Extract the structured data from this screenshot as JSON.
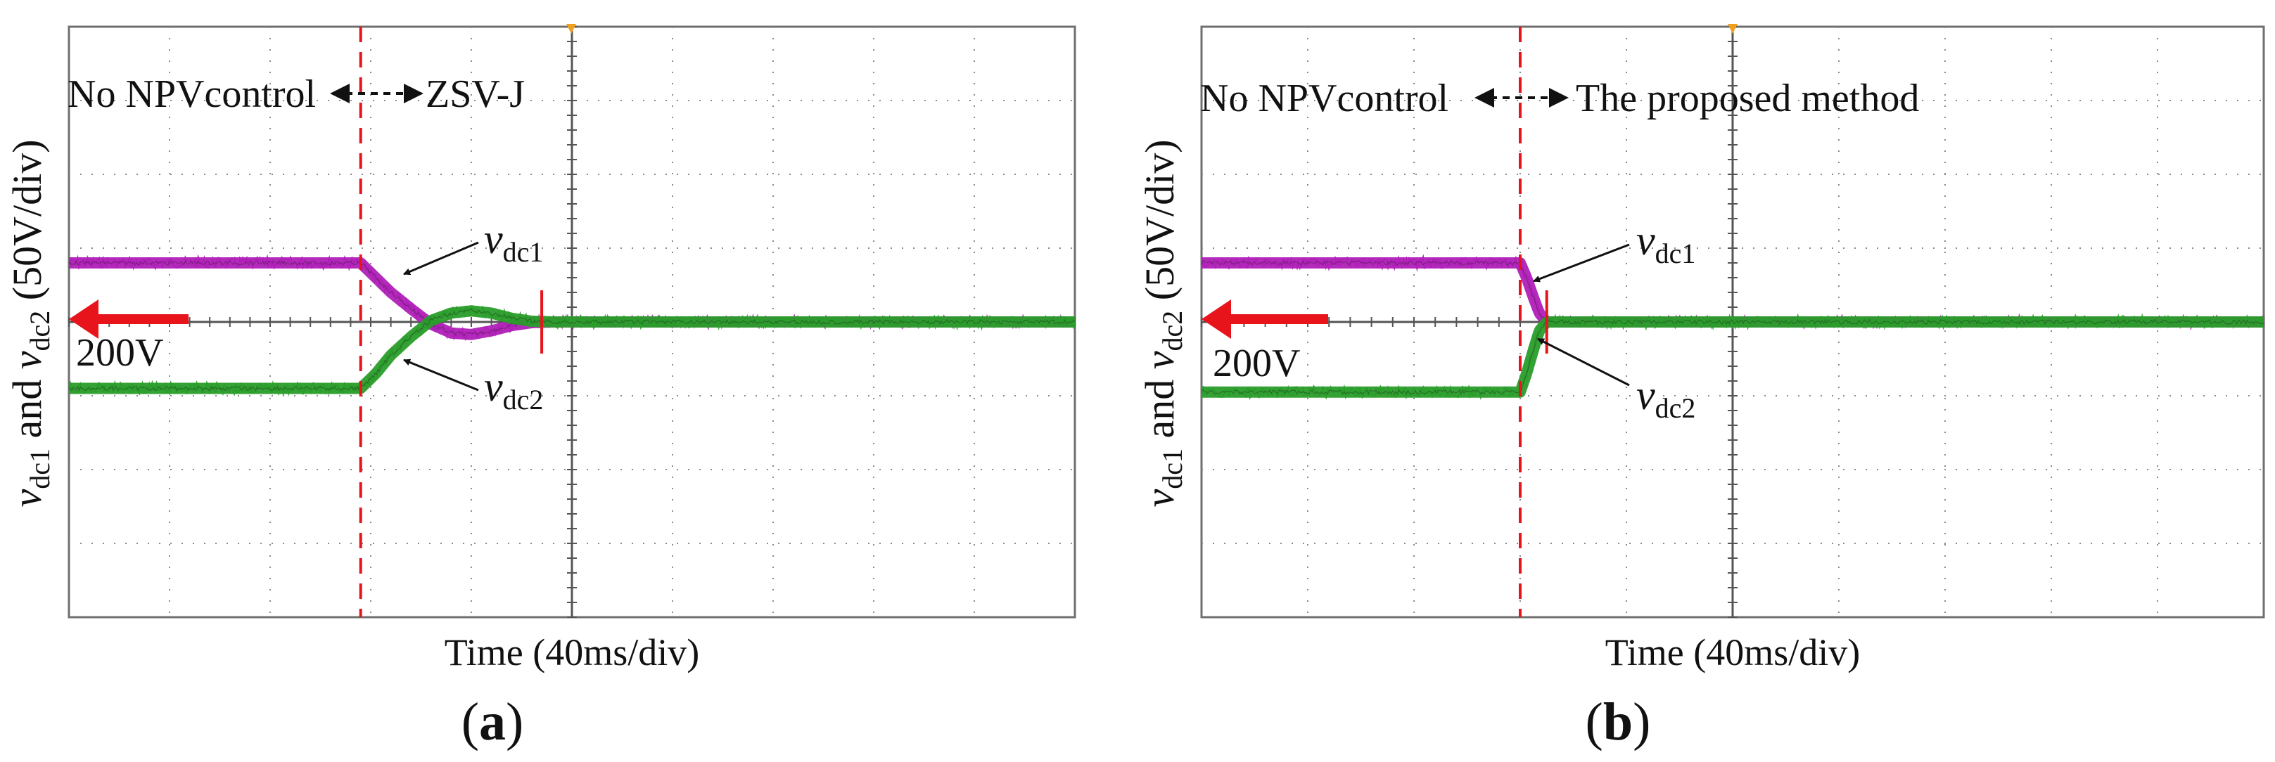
{
  "chart_data": [
    {
      "id": "a",
      "type": "line",
      "panel_label": "a",
      "xlabel": "Time (40ms/div)",
      "ylabel_parts": {
        "v1": "v",
        "s1": "dc1",
        "and": " and ",
        "v2": "v",
        "s2": "dc2",
        "unit": " (50V/div)"
      },
      "x_divisions": 10,
      "y_divisions": 8,
      "x_unit": "div",
      "y_unit": "div",
      "reference_marker_label": "200V",
      "reference_marker_y_div": 4.0,
      "transition_label": {
        "before": "No NPVcontrol",
        "after": "ZSV-J"
      },
      "transition_x_div": 2.9,
      "settle_marker_x_div": 4.7,
      "callout_labels": {
        "v1": "v",
        "s1": "dc1",
        "v2": "v",
        "s2": "dc2"
      },
      "series": [
        {
          "key": "vdc1",
          "color": "#b020b8",
          "x": [
            0,
            2.9,
            3.05,
            3.2,
            3.4,
            3.6,
            3.8,
            4.0,
            4.2,
            4.4,
            4.6,
            4.8,
            10
          ],
          "y": [
            4.8,
            4.8,
            4.6,
            4.4,
            4.18,
            3.97,
            3.85,
            3.83,
            3.88,
            3.95,
            3.99,
            4.0,
            4.0
          ]
        },
        {
          "key": "vdc2",
          "color": "#2a9d2a",
          "x": [
            0,
            2.9,
            3.05,
            3.2,
            3.4,
            3.6,
            3.8,
            4.0,
            4.2,
            4.4,
            4.6,
            4.8,
            10
          ],
          "y": [
            3.1,
            3.1,
            3.3,
            3.55,
            3.8,
            4.02,
            4.12,
            4.15,
            4.12,
            4.05,
            4.01,
            4.0,
            4.0
          ]
        }
      ]
    },
    {
      "id": "b",
      "type": "line",
      "panel_label": "b",
      "xlabel": "Time (40ms/div)",
      "ylabel_parts": {
        "v1": "v",
        "s1": "dc1",
        "and": " and ",
        "v2": "v",
        "s2": "dc2",
        "unit": " (50V/div)"
      },
      "x_divisions": 10,
      "y_divisions": 8,
      "x_unit": "div",
      "y_unit": "div",
      "reference_marker_label": "200V",
      "reference_marker_y_div": 4.0,
      "transition_label": {
        "before": "No NPVcontrol",
        "after": "The proposed method"
      },
      "transition_x_div": 3.0,
      "settle_marker_x_div": 3.25,
      "callout_labels": {
        "v1": "v",
        "s1": "dc1",
        "v2": "v",
        "s2": "dc2"
      },
      "series": [
        {
          "key": "vdc1",
          "color": "#b020b8",
          "x": [
            0,
            3.0,
            3.06,
            3.12,
            3.18,
            3.25,
            10
          ],
          "y": [
            4.8,
            4.8,
            4.6,
            4.35,
            4.12,
            4.0,
            4.0
          ]
        },
        {
          "key": "vdc2",
          "color": "#2a9d2a",
          "x": [
            0,
            3.0,
            3.06,
            3.12,
            3.18,
            3.25,
            10
          ],
          "y": [
            3.05,
            3.05,
            3.3,
            3.6,
            3.88,
            4.0,
            4.0
          ]
        }
      ]
    }
  ]
}
